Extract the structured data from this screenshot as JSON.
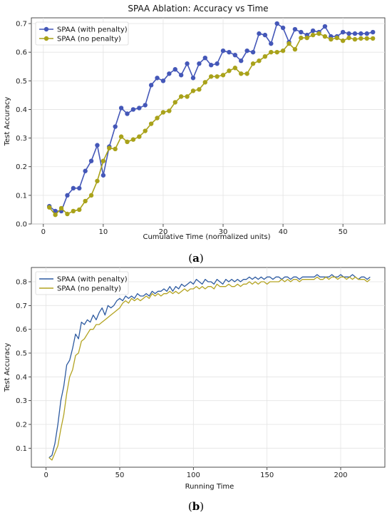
{
  "chart_data": [
    {
      "type": "line",
      "title": "SPAA Ablation: Accuracy vs Time",
      "xlabel": "Cumulative Time (normalized units)",
      "ylabel": "Test Accuracy",
      "xlim": [
        -2,
        57
      ],
      "ylim": [
        0,
        0.72
      ],
      "xticks": [
        0,
        10,
        20,
        30,
        40,
        50
      ],
      "yticks": [
        0.0,
        0.1,
        0.2,
        0.3,
        0.4,
        0.5,
        0.6,
        0.7
      ],
      "xtick_labels": [
        "0",
        "10",
        "20",
        "30",
        "40",
        "50"
      ],
      "ytick_labels": [
        "0.0",
        "0.1",
        "0.2",
        "0.3",
        "0.4",
        "0.5",
        "0.6",
        "0.7"
      ],
      "grid": true,
      "markers": true,
      "legend_position": "upper-left",
      "x": [
        1,
        2,
        3,
        4,
        5,
        6,
        7,
        8,
        9,
        10,
        11,
        12,
        13,
        14,
        15,
        16,
        17,
        18,
        19,
        20,
        21,
        22,
        23,
        24,
        25,
        26,
        27,
        28,
        29,
        30,
        31,
        32,
        33,
        34,
        35,
        36,
        37,
        38,
        39,
        40,
        41,
        42,
        43,
        44,
        45,
        46,
        47,
        48,
        49,
        50,
        51,
        52,
        53,
        54,
        55
      ],
      "series": [
        {
          "name": "SPAA (with penalty)",
          "color": "#4457b8",
          "values": [
            0.062,
            0.045,
            0.045,
            0.1,
            0.125,
            0.125,
            0.185,
            0.22,
            0.275,
            0.17,
            0.27,
            0.34,
            0.405,
            0.385,
            0.4,
            0.405,
            0.415,
            0.485,
            0.51,
            0.5,
            0.525,
            0.54,
            0.52,
            0.56,
            0.51,
            0.56,
            0.58,
            0.555,
            0.56,
            0.605,
            0.6,
            0.59,
            0.57,
            0.605,
            0.6,
            0.665,
            0.66,
            0.63,
            0.7,
            0.685,
            0.635,
            0.68,
            0.67,
            0.66,
            0.675,
            0.67,
            0.69,
            0.655,
            0.655,
            0.67,
            0.665,
            0.665,
            0.665,
            0.665,
            0.67
          ]
        },
        {
          "name": "SPAA (no penalty)",
          "color": "#a9a21a",
          "values": [
            0.058,
            0.032,
            0.055,
            0.035,
            0.045,
            0.05,
            0.08,
            0.1,
            0.15,
            0.22,
            0.265,
            0.262,
            0.305,
            0.287,
            0.295,
            0.305,
            0.325,
            0.35,
            0.37,
            0.39,
            0.395,
            0.425,
            0.445,
            0.445,
            0.465,
            0.47,
            0.495,
            0.515,
            0.515,
            0.52,
            0.535,
            0.545,
            0.525,
            0.525,
            0.56,
            0.57,
            0.585,
            0.6,
            0.6,
            0.605,
            0.63,
            0.61,
            0.65,
            0.65,
            0.66,
            0.665,
            0.655,
            0.645,
            0.65,
            0.64,
            0.65,
            0.645,
            0.648,
            0.648,
            0.648
          ]
        }
      ]
    },
    {
      "type": "line",
      "title": "",
      "xlabel": "Running Time",
      "ylabel": "Test Accuracy",
      "xlim": [
        -10,
        230
      ],
      "ylim": [
        0.02,
        0.86
      ],
      "xticks": [
        0,
        50,
        100,
        150,
        200
      ],
      "yticks": [
        0.1,
        0.2,
        0.3,
        0.4,
        0.5,
        0.6,
        0.7,
        0.8
      ],
      "xtick_labels": [
        "0",
        "50",
        "100",
        "150",
        "200"
      ],
      "ytick_labels": [
        "0.1",
        "0.2",
        "0.3",
        "0.4",
        "0.5",
        "0.6",
        "0.7",
        "0.8"
      ],
      "grid": true,
      "markers": false,
      "legend_position": "upper-left",
      "x_start": 2,
      "x_step": 2,
      "series": [
        {
          "name": "SPAA (with penalty)",
          "color": "#2d5aa0",
          "values": [
            0.06,
            0.07,
            0.12,
            0.2,
            0.3,
            0.36,
            0.45,
            0.47,
            0.52,
            0.58,
            0.56,
            0.63,
            0.62,
            0.64,
            0.63,
            0.66,
            0.64,
            0.67,
            0.69,
            0.66,
            0.7,
            0.69,
            0.7,
            0.72,
            0.73,
            0.72,
            0.74,
            0.73,
            0.74,
            0.73,
            0.75,
            0.74,
            0.74,
            0.75,
            0.74,
            0.76,
            0.75,
            0.76,
            0.76,
            0.77,
            0.76,
            0.78,
            0.76,
            0.78,
            0.77,
            0.79,
            0.78,
            0.79,
            0.8,
            0.79,
            0.81,
            0.8,
            0.79,
            0.81,
            0.8,
            0.8,
            0.79,
            0.81,
            0.8,
            0.79,
            0.81,
            0.8,
            0.81,
            0.8,
            0.81,
            0.8,
            0.81,
            0.81,
            0.82,
            0.81,
            0.82,
            0.81,
            0.82,
            0.81,
            0.82,
            0.82,
            0.81,
            0.82,
            0.82,
            0.81,
            0.82,
            0.82,
            0.81,
            0.82,
            0.82,
            0.81,
            0.82,
            0.82,
            0.82,
            0.82,
            0.82,
            0.83,
            0.82,
            0.82,
            0.82,
            0.82,
            0.83,
            0.82,
            0.82,
            0.83,
            0.82,
            0.82,
            0.82,
            0.83,
            0.82,
            0.81,
            0.82,
            0.82,
            0.81,
            0.82
          ]
        },
        {
          "name": "SPAA (no penalty)",
          "color": "#b3a321",
          "values": [
            0.06,
            0.05,
            0.08,
            0.11,
            0.18,
            0.24,
            0.33,
            0.4,
            0.43,
            0.49,
            0.5,
            0.55,
            0.56,
            0.58,
            0.6,
            0.6,
            0.62,
            0.62,
            0.63,
            0.64,
            0.65,
            0.66,
            0.67,
            0.68,
            0.69,
            0.71,
            0.72,
            0.71,
            0.73,
            0.72,
            0.73,
            0.72,
            0.73,
            0.74,
            0.73,
            0.75,
            0.74,
            0.75,
            0.74,
            0.75,
            0.75,
            0.76,
            0.75,
            0.76,
            0.75,
            0.76,
            0.77,
            0.76,
            0.77,
            0.77,
            0.78,
            0.77,
            0.78,
            0.77,
            0.78,
            0.78,
            0.77,
            0.79,
            0.78,
            0.78,
            0.78,
            0.79,
            0.78,
            0.78,
            0.79,
            0.78,
            0.79,
            0.79,
            0.8,
            0.79,
            0.8,
            0.79,
            0.8,
            0.8,
            0.79,
            0.8,
            0.8,
            0.8,
            0.8,
            0.81,
            0.8,
            0.81,
            0.8,
            0.81,
            0.81,
            0.8,
            0.81,
            0.81,
            0.81,
            0.81,
            0.81,
            0.82,
            0.81,
            0.81,
            0.82,
            0.81,
            0.82,
            0.82,
            0.81,
            0.82,
            0.82,
            0.81,
            0.82,
            0.81,
            0.82,
            0.81,
            0.81,
            0.81,
            0.8,
            0.81
          ]
        }
      ]
    }
  ],
  "captions": {
    "a": {
      "open": "(",
      "letter": "a",
      "close": ")"
    },
    "b": {
      "open": "(",
      "letter": "b",
      "close": ")"
    }
  }
}
